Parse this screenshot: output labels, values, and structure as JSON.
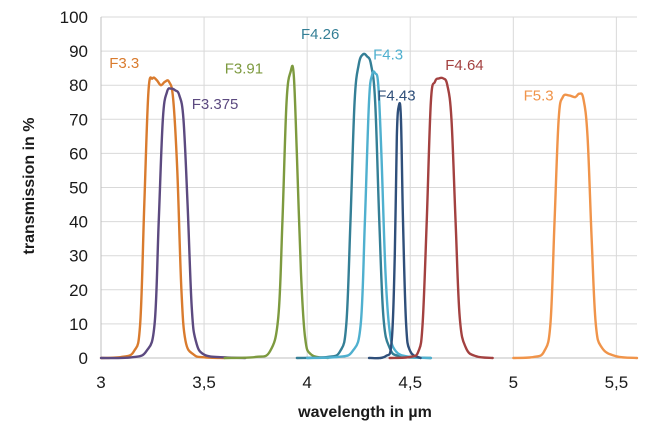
{
  "chart_data": {
    "type": "line",
    "title": "",
    "xlabel": "wavelength in µm",
    "ylabel": "transmission in %",
    "xlim": [
      3,
      5.6
    ],
    "ylim": [
      0,
      100
    ],
    "x_ticks": [
      "3",
      "3,5",
      "4",
      "4,5",
      "5",
      "5,5"
    ],
    "x_tick_values": [
      3,
      3.5,
      4,
      4.5,
      5,
      5.5
    ],
    "y_ticks": [
      "0",
      "10",
      "20",
      "30",
      "40",
      "50",
      "60",
      "70",
      "80",
      "90",
      "100"
    ],
    "y_tick_values": [
      0,
      10,
      20,
      30,
      40,
      50,
      60,
      70,
      80,
      90,
      100
    ],
    "grid": true,
    "series": [
      {
        "name": "F3.3",
        "color": "#d97b2e",
        "label_pos": [
          3.04,
          85
        ],
        "points": [
          [
            3.0,
            0
          ],
          [
            3.1,
            0.3
          ],
          [
            3.16,
            2
          ],
          [
            3.19,
            10
          ],
          [
            3.21,
            45
          ],
          [
            3.23,
            78
          ],
          [
            3.25,
            82
          ],
          [
            3.27,
            81.5
          ],
          [
            3.29,
            80
          ],
          [
            3.31,
            81
          ],
          [
            3.33,
            81
          ],
          [
            3.35,
            76
          ],
          [
            3.37,
            55
          ],
          [
            3.39,
            20
          ],
          [
            3.41,
            5
          ],
          [
            3.45,
            1
          ],
          [
            3.5,
            0.2
          ],
          [
            3.6,
            0
          ]
        ]
      },
      {
        "name": "F3.375",
        "color": "#5c4a80",
        "label_pos": [
          3.44,
          73
        ],
        "points": [
          [
            3.0,
            0
          ],
          [
            3.15,
            0.2
          ],
          [
            3.22,
            2
          ],
          [
            3.26,
            10
          ],
          [
            3.28,
            40
          ],
          [
            3.3,
            70
          ],
          [
            3.32,
            78
          ],
          [
            3.34,
            79
          ],
          [
            3.36,
            78.5
          ],
          [
            3.38,
            77
          ],
          [
            3.4,
            70
          ],
          [
            3.42,
            45
          ],
          [
            3.44,
            15
          ],
          [
            3.46,
            5
          ],
          [
            3.5,
            1
          ],
          [
            3.6,
            0.2
          ],
          [
            3.7,
            0
          ]
        ]
      },
      {
        "name": "F3.91",
        "color": "#7d9a3f",
        "label_pos": [
          3.6,
          83.5
        ],
        "points": [
          [
            3.6,
            0
          ],
          [
            3.75,
            0.3
          ],
          [
            3.82,
            2
          ],
          [
            3.86,
            12
          ],
          [
            3.88,
            40
          ],
          [
            3.9,
            75
          ],
          [
            3.92,
            84
          ],
          [
            3.935,
            83
          ],
          [
            3.95,
            60
          ],
          [
            3.97,
            25
          ],
          [
            3.99,
            6
          ],
          [
            4.02,
            1
          ],
          [
            4.1,
            0
          ]
        ]
      },
      {
        "name": "F4.26",
        "color": "#347f96",
        "label_pos": [
          3.97,
          93.5
        ],
        "points": [
          [
            3.95,
            0
          ],
          [
            4.1,
            0.3
          ],
          [
            4.16,
            2
          ],
          [
            4.19,
            10
          ],
          [
            4.21,
            40
          ],
          [
            4.23,
            75
          ],
          [
            4.25,
            86
          ],
          [
            4.27,
            89
          ],
          [
            4.29,
            88.5
          ],
          [
            4.31,
            86
          ],
          [
            4.33,
            75
          ],
          [
            4.35,
            40
          ],
          [
            4.37,
            12
          ],
          [
            4.4,
            3
          ],
          [
            4.45,
            0.5
          ],
          [
            4.6,
            0
          ]
        ]
      },
      {
        "name": "F4.3",
        "color": "#4fb0cf",
        "label_pos": [
          4.32,
          87.5
        ],
        "points": [
          [
            4.0,
            0
          ],
          [
            4.15,
            0.3
          ],
          [
            4.22,
            2
          ],
          [
            4.26,
            10
          ],
          [
            4.28,
            40
          ],
          [
            4.3,
            75
          ],
          [
            4.315,
            83
          ],
          [
            4.33,
            83.5
          ],
          [
            4.345,
            80
          ],
          [
            4.36,
            60
          ],
          [
            4.38,
            25
          ],
          [
            4.4,
            8
          ],
          [
            4.43,
            2
          ],
          [
            4.5,
            0.3
          ],
          [
            4.6,
            0
          ]
        ]
      },
      {
        "name": "F4.43",
        "color": "#2f4f7a",
        "label_pos": [
          4.34,
          75.5
        ],
        "points": [
          [
            4.3,
            0
          ],
          [
            4.38,
            0.5
          ],
          [
            4.41,
            5
          ],
          [
            4.425,
            30
          ],
          [
            4.435,
            65
          ],
          [
            4.445,
            74
          ],
          [
            4.455,
            70
          ],
          [
            4.465,
            40
          ],
          [
            4.48,
            10
          ],
          [
            4.5,
            2
          ],
          [
            4.55,
            0
          ]
        ]
      },
      {
        "name": "F4.64",
        "color": "#a34140",
        "label_pos": [
          4.67,
          84.5
        ],
        "points": [
          [
            4.4,
            0
          ],
          [
            4.5,
            0.3
          ],
          [
            4.54,
            2
          ],
          [
            4.56,
            10
          ],
          [
            4.58,
            40
          ],
          [
            4.6,
            75
          ],
          [
            4.62,
            81
          ],
          [
            4.64,
            82
          ],
          [
            4.66,
            82
          ],
          [
            4.68,
            80
          ],
          [
            4.7,
            70
          ],
          [
            4.72,
            40
          ],
          [
            4.74,
            12
          ],
          [
            4.77,
            3
          ],
          [
            4.82,
            0.5
          ],
          [
            4.9,
            0
          ]
        ]
      },
      {
        "name": "F5.3",
        "color": "#f0944a",
        "label_pos": [
          5.05,
          75.5
        ],
        "points": [
          [
            5.0,
            0
          ],
          [
            5.1,
            0.3
          ],
          [
            5.15,
            2
          ],
          [
            5.18,
            10
          ],
          [
            5.2,
            40
          ],
          [
            5.22,
            70
          ],
          [
            5.24,
            76.5
          ],
          [
            5.27,
            77
          ],
          [
            5.3,
            76.5
          ],
          [
            5.32,
            77.5
          ],
          [
            5.34,
            76
          ],
          [
            5.36,
            65
          ],
          [
            5.38,
            35
          ],
          [
            5.4,
            10
          ],
          [
            5.43,
            3
          ],
          [
            5.5,
            0.5
          ],
          [
            5.6,
            0
          ]
        ]
      }
    ]
  }
}
